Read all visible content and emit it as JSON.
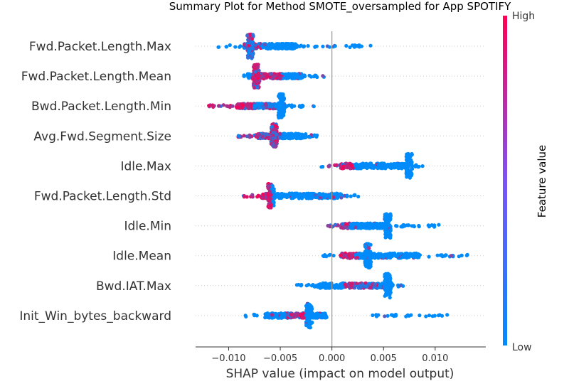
{
  "chart_data": {
    "type": "scatter",
    "title": "Summary Plot for Method SMOTE_oversampled for App SPOTIFY",
    "xlabel": "SHAP value (impact on model output)",
    "ylabel": "",
    "xlim": [
      -0.0132,
      0.0149
    ],
    "x_ticks": [
      {
        "value": -0.01,
        "label": "−0.010"
      },
      {
        "value": -0.005,
        "label": "−0.005"
      },
      {
        "value": 0.0,
        "label": "0.000"
      },
      {
        "value": 0.005,
        "label": "0.005"
      },
      {
        "value": 0.01,
        "label": "0.010"
      }
    ],
    "colorbar": {
      "label": "Feature value",
      "high_label": "High",
      "low_label": "Low",
      "low_color": "#008bfb",
      "high_color": "#ff0052"
    },
    "zero_line": 0.0,
    "features": [
      {
        "name": "Fwd.Packet.Length.Max",
        "range": [
          -0.011,
          0.0038
        ],
        "dense": [
          -0.0085,
          -0.0035
        ],
        "spike": -0.0079,
        "colored": [
          [
            -0.0085,
            -0.0068,
            0.35
          ]
        ]
      },
      {
        "name": "Fwd.Packet.Length.Mean",
        "range": [
          -0.0088,
          -0.0004
        ],
        "dense": [
          -0.0082,
          -0.0028
        ],
        "spike": -0.0073,
        "colored": [
          [
            -0.0078,
            -0.0048,
            0.85
          ]
        ]
      },
      {
        "name": "Bwd.Packet.Length.Min",
        "range": [
          -0.0122,
          -0.0014
        ],
        "dense": [
          -0.0092,
          -0.0045
        ],
        "spike": -0.0049,
        "colored": [
          [
            -0.0122,
            -0.0075,
            0.9
          ],
          [
            -0.0068,
            -0.0055,
            0.5
          ]
        ]
      },
      {
        "name": "Avg.Fwd.Segment.Size",
        "range": [
          -0.0092,
          -0.0014
        ],
        "dense": [
          -0.0072,
          -0.0025
        ],
        "spike": -0.0056,
        "colored": [
          [
            -0.0092,
            -0.0048,
            0.55
          ]
        ]
      },
      {
        "name": "Idle.Max",
        "range": [
          -0.0018,
          0.0088
        ],
        "dense": [
          0.0008,
          0.0075
        ],
        "spike": 0.0075,
        "colored": [
          [
            -0.0008,
            0.0022,
            0.8
          ]
        ]
      },
      {
        "name": "Fwd.Packet.Length.Std",
        "range": [
          -0.0088,
          0.0026
        ],
        "dense": [
          -0.0068,
          0.001
        ],
        "spike": -0.0059,
        "colored": [
          [
            -0.0088,
            -0.0058,
            0.95
          ]
        ]
      },
      {
        "name": "Idle.Min",
        "range": [
          -0.0004,
          0.0107
        ],
        "dense": [
          0.0008,
          0.0055
        ],
        "spike": 0.0054,
        "colored": [
          [
            -0.0004,
            0.0018,
            0.85
          ]
        ]
      },
      {
        "name": "Idle.Mean",
        "range": [
          -0.0011,
          0.0136
        ],
        "dense": [
          0.0008,
          0.0085
        ],
        "spike": 0.0035,
        "colored": [
          [
            0.0002,
            0.0025,
            0.95
          ]
        ]
      },
      {
        "name": "Bwd.IAT.Max",
        "range": [
          -0.0035,
          0.0072
        ],
        "dense": [
          -0.0015,
          0.0058
        ],
        "spike": 0.0054,
        "colored": [
          [
            0.0012,
            0.0045,
            0.6
          ]
        ]
      },
      {
        "name": "Init_Win_bytes_backward",
        "range": [
          -0.0084,
          0.0113
        ],
        "dense": [
          -0.0065,
          -0.0005
        ],
        "spike": -0.0022,
        "colored": [
          [
            -0.0045,
            -0.0025,
            0.55
          ]
        ],
        "gap": [
          -0.0005,
          0.0022
        ]
      }
    ]
  }
}
